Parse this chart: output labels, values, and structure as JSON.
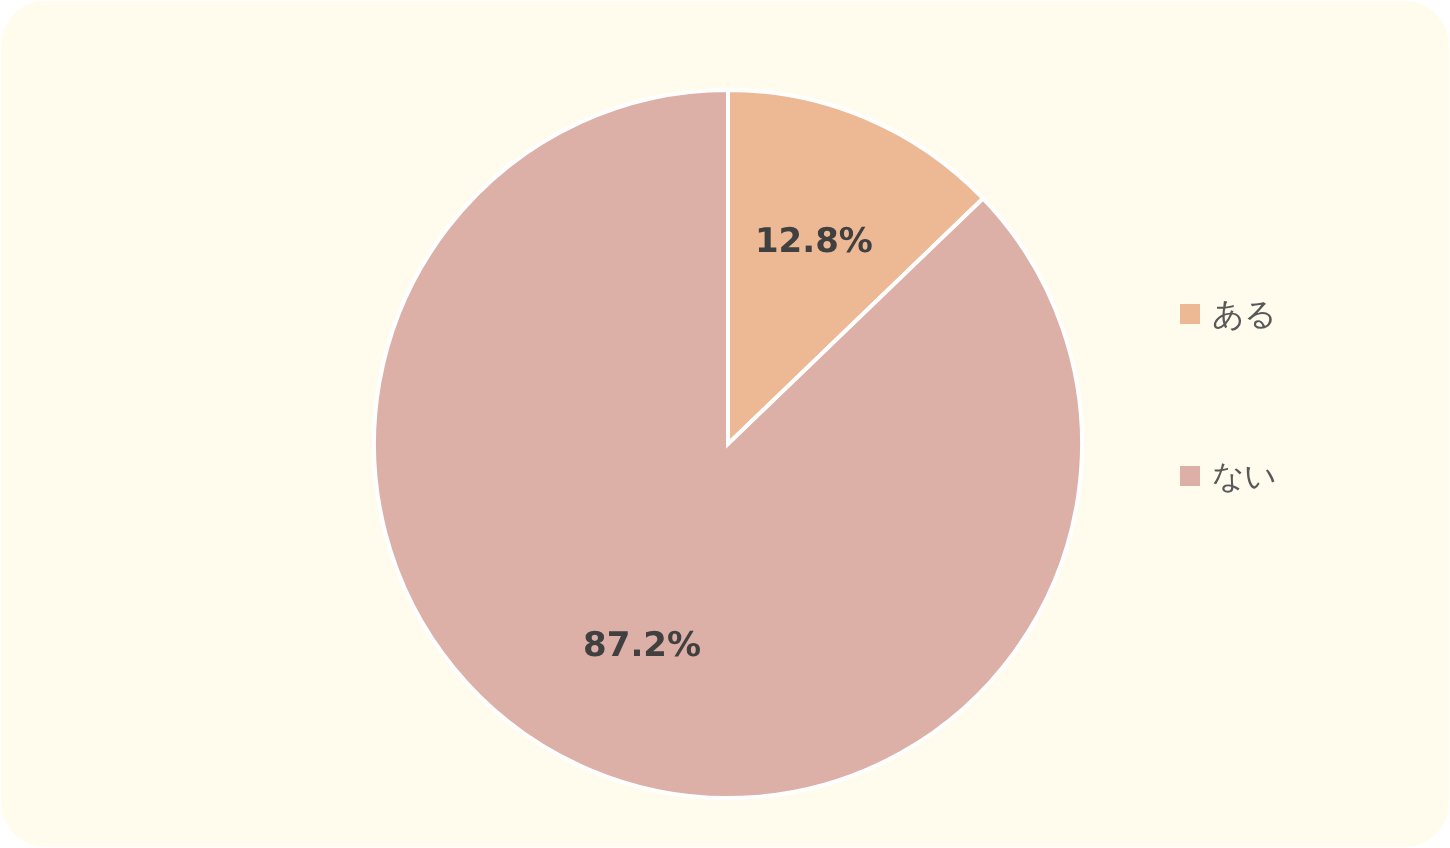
{
  "chart_data": {
    "type": "pie",
    "categories": [
      "ある",
      "ない"
    ],
    "values": [
      12.8,
      87.2
    ],
    "colors": [
      "#edb994",
      "#dcafa7"
    ],
    "value_labels": [
      "12.8%",
      "87.2%"
    ],
    "legend": "right"
  }
}
